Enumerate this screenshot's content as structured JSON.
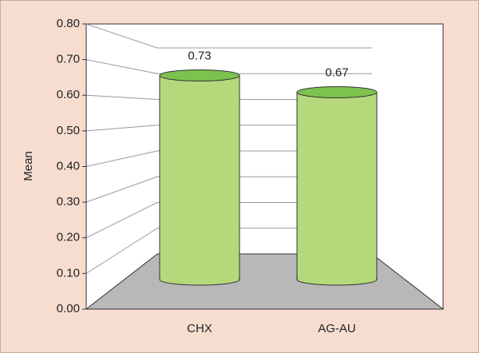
{
  "chart_data": {
    "type": "bar3d",
    "y_label": "Mean",
    "categories": [
      "CHX",
      "AG-AU"
    ],
    "values": [
      0.73,
      0.67
    ],
    "color": "#b5d97a",
    "top_color": "#7cc24e",
    "floor_color": "#b8b8b8",
    "ylim": [
      0,
      0.8
    ],
    "yticks": [
      {
        "value": 0,
        "label": "0.00"
      },
      {
        "value": 0.1,
        "label": "0.10"
      },
      {
        "value": 0.2,
        "label": "0.20"
      },
      {
        "value": 0.3,
        "label": "0.30"
      },
      {
        "value": 0.4,
        "label": "0.40"
      },
      {
        "value": 0.5,
        "label": "0.50"
      },
      {
        "value": 0.6,
        "label": "0.60"
      },
      {
        "value": 0.7,
        "label": "0.70"
      },
      {
        "value": 0.8,
        "label": "0.80"
      }
    ],
    "grid": true
  }
}
